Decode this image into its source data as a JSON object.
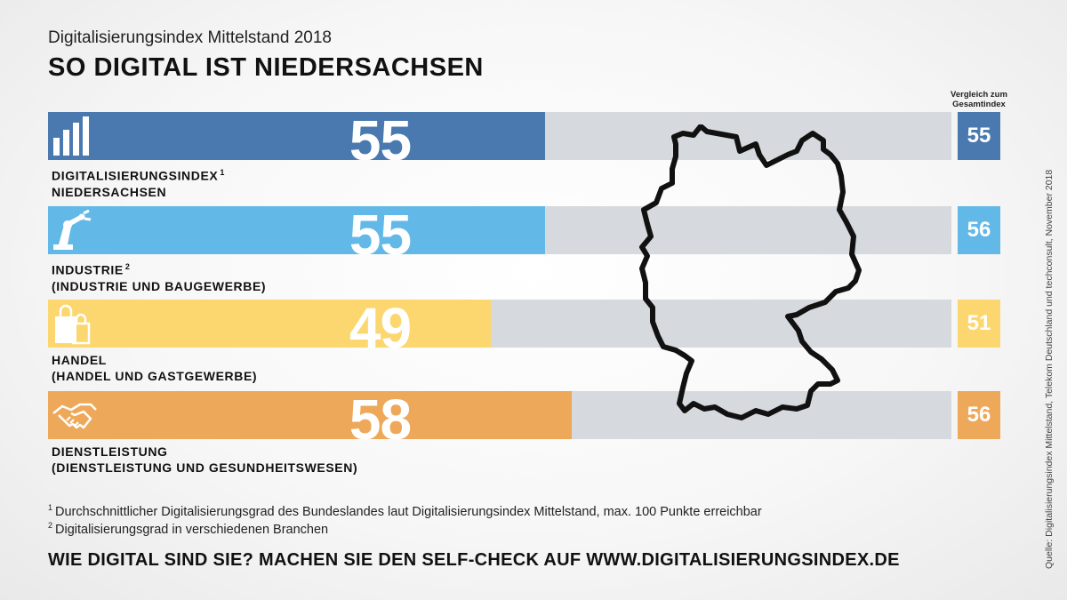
{
  "header": {
    "subtitle": "Digitalisierungsindex Mittelstand 2018",
    "title": "SO DIGITAL IST NIEDERSACHSEN"
  },
  "compare_header": {
    "line1": "Vergleich zum",
    "line2": "Gesamtindex"
  },
  "colors": {
    "blue": "#4a79b0",
    "light_blue": "#62b8e6",
    "yellow": "#fcd770",
    "orange": "#eea85a",
    "track": "#d6d9dd"
  },
  "chart_data": {
    "type": "bar",
    "orientation": "horizontal",
    "xlim": [
      0,
      100
    ],
    "categories": [
      "DIGITALISIERUNGSINDEX NIEDERSACHSEN",
      "INDUSTRIE (INDUSTRIE UND BAUGEWERBE)",
      "HANDEL (HANDEL UND GASTGEWERBE)",
      "DIENSTLEISTUNG (DIENSTLEISTUNG UND GESUNDHEITSWESEN)"
    ],
    "values": [
      55,
      55,
      49,
      58
    ],
    "comparison_values": [
      55,
      56,
      51,
      56
    ],
    "rows": [
      {
        "line1": "DIGITALISIERUNGSINDEX",
        "sup": "1",
        "line2": "NIEDERSACHSEN",
        "value": 55,
        "compare": 55,
        "color": "#4a79b0",
        "icon": "bar-chart-icon"
      },
      {
        "line1": "INDUSTRIE",
        "sup": "2",
        "line2": "(INDUSTRIE UND BAUGEWERBE)",
        "value": 55,
        "compare": 56,
        "color": "#62b8e6",
        "icon": "robot-arm-icon"
      },
      {
        "line1": "HANDEL",
        "sup": "",
        "line2": "(HANDEL UND GASTGEWERBE)",
        "value": 49,
        "compare": 51,
        "color": "#fcd770",
        "icon": "shopping-bags-icon"
      },
      {
        "line1": "DIENSTLEISTUNG",
        "sup": "",
        "line2": "(DIENSTLEISTUNG UND GESUNDHEITSWESEN)",
        "value": 58,
        "compare": 56,
        "color": "#eea85a",
        "icon": "handshake-icon"
      }
    ]
  },
  "footnotes": [
    {
      "mark": "1",
      "text": "Durchschnittlicher Digitalisierungsgrad des Bundeslandes laut Digitalisierungsindex Mittelstand, max. 100 Punkte erreichbar"
    },
    {
      "mark": "2",
      "text": "Digitalisierungsgrad in verschiedenen Branchen"
    }
  ],
  "cta": "WIE DIGITAL SIND SIE? MACHEN SIE DEN SELF-CHECK AUF WWW.DIGITALISIERUNGSINDEX.DE",
  "source": "Quelle: Digitalisierungsindex Mittelstand, Telekom Deutschland und techconsult, November 2018",
  "map_icon": "germany-outline-icon"
}
